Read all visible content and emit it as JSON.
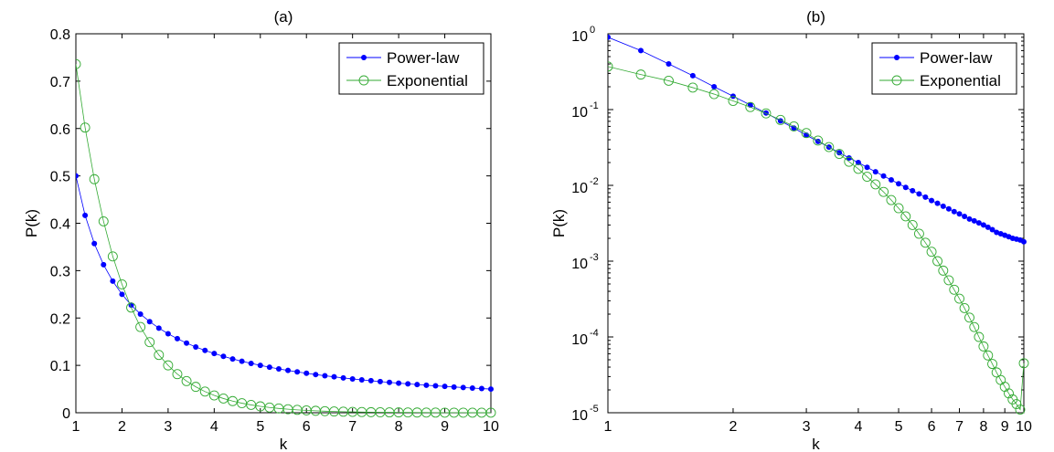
{
  "chart_data": [
    {
      "type": "line",
      "title": "(a)",
      "xlabel": "k",
      "ylabel": "P(k)",
      "xscale": "linear",
      "yscale": "linear",
      "xlim": [
        1,
        10
      ],
      "ylim": [
        0,
        0.8
      ],
      "xticks": [
        "1",
        "2",
        "3",
        "4",
        "5",
        "6",
        "7",
        "8",
        "9",
        "10"
      ],
      "yticks": [
        "0",
        "0.1",
        "0.2",
        "0.3",
        "0.4",
        "0.5",
        "0.6",
        "0.7",
        "0.8"
      ],
      "legend": "top-right",
      "grid": false,
      "series": [
        {
          "name": "Power-law",
          "color": "#0000ff",
          "marker": "dot",
          "x": [
            1.0,
            1.2,
            1.4,
            1.6,
            1.8,
            2.0,
            2.2,
            2.4,
            2.6,
            2.8,
            3.0,
            3.2,
            3.4,
            3.6,
            3.8,
            4.0,
            4.2,
            4.4,
            4.6,
            4.8,
            5.0,
            5.2,
            5.4,
            5.6,
            5.8,
            6.0,
            6.2,
            6.4,
            6.6,
            6.8,
            7.0,
            7.2,
            7.4,
            7.6,
            7.8,
            8.0,
            8.2,
            8.4,
            8.6,
            8.8,
            9.0,
            9.2,
            9.4,
            9.6,
            9.8,
            10.0
          ],
          "y": [
            0.5,
            0.4167,
            0.3571,
            0.3125,
            0.2778,
            0.25,
            0.2273,
            0.2083,
            0.1923,
            0.1786,
            0.1667,
            0.1563,
            0.1471,
            0.1389,
            0.1316,
            0.125,
            0.119,
            0.1136,
            0.1087,
            0.1042,
            0.1,
            0.0962,
            0.0926,
            0.0893,
            0.0862,
            0.0833,
            0.0806,
            0.0781,
            0.0758,
            0.0735,
            0.0714,
            0.0694,
            0.0676,
            0.0658,
            0.0641,
            0.0625,
            0.061,
            0.0595,
            0.0581,
            0.0568,
            0.0556,
            0.0543,
            0.0532,
            0.0521,
            0.051,
            0.05
          ]
        },
        {
          "name": "Exponential",
          "color": "#33aa33",
          "marker": "circle",
          "x": [
            1.0,
            1.2,
            1.4,
            1.6,
            1.8,
            2.0,
            2.2,
            2.4,
            2.6,
            2.8,
            3.0,
            3.2,
            3.4,
            3.6,
            3.8,
            4.0,
            4.2,
            4.4,
            4.6,
            4.8,
            5.0,
            5.2,
            5.4,
            5.6,
            5.8,
            6.0,
            6.2,
            6.4,
            6.6,
            6.8,
            7.0,
            7.2,
            7.4,
            7.6,
            7.8,
            8.0,
            8.2,
            8.4,
            8.6,
            8.8,
            9.0,
            9.2,
            9.4,
            9.6,
            9.8,
            10.0
          ],
          "y": [
            0.736,
            0.602,
            0.493,
            0.404,
            0.33,
            0.271,
            0.222,
            0.181,
            0.149,
            0.122,
            0.1,
            0.0815,
            0.0668,
            0.0547,
            0.0447,
            0.0366,
            0.03,
            0.0246,
            0.0201,
            0.0165,
            0.0135,
            0.011,
            0.009,
            0.0074,
            0.0061,
            0.005,
            0.0041,
            0.0033,
            0.0027,
            0.0022,
            0.0018,
            0.0015,
            0.0012,
            0.001,
            0.0008,
            0.0007,
            0.0006,
            0.0005,
            0.0004,
            0.0003,
            0.0002,
            0.0002,
            0.0002,
            0.0001,
            0.0001,
            0.0001
          ]
        }
      ]
    },
    {
      "type": "line",
      "title": "(b)",
      "xlabel": "k",
      "ylabel": "P(k)",
      "xscale": "log",
      "yscale": "log",
      "xlim": [
        1,
        10
      ],
      "ylim": [
        1e-05,
        1
      ],
      "xticks": [
        "1",
        "2",
        "3",
        "4",
        "5",
        "6",
        "7",
        "8",
        "9",
        "10"
      ],
      "yticks": [
        {
          "base": "10",
          "exp": "0"
        },
        {
          "base": "10",
          "exp": "-1"
        },
        {
          "base": "10",
          "exp": "-2"
        },
        {
          "base": "10",
          "exp": "-3"
        },
        {
          "base": "10",
          "exp": "-4"
        },
        {
          "base": "10",
          "exp": "-5"
        }
      ],
      "legend": "top-right",
      "grid": false,
      "series": [
        {
          "name": "Power-law",
          "color": "#0000ff",
          "marker": "dot",
          "x": [
            1.0,
            1.2,
            1.4,
            1.6,
            1.8,
            2.0,
            2.2,
            2.4,
            2.6,
            2.8,
            3.0,
            3.2,
            3.4,
            3.6,
            3.8,
            4.0,
            4.2,
            4.4,
            4.6,
            4.8,
            5.0,
            5.2,
            5.4,
            5.6,
            5.8,
            6.0,
            6.2,
            6.4,
            6.6,
            6.8,
            7.0,
            7.2,
            7.4,
            7.6,
            7.8,
            8.0,
            8.2,
            8.4,
            8.6,
            8.8,
            9.0,
            9.2,
            9.4,
            9.6,
            9.8,
            10.0
          ],
          "y": [
            0.9,
            0.6,
            0.4,
            0.28,
            0.2,
            0.15,
            0.115,
            0.09,
            0.071,
            0.057,
            0.046,
            0.038,
            0.032,
            0.027,
            0.023,
            0.02,
            0.0173,
            0.0151,
            0.0133,
            0.0118,
            0.0105,
            0.0094,
            0.0085,
            0.0077,
            0.007,
            0.0063,
            0.0058,
            0.0053,
            0.0049,
            0.0045,
            0.0042,
            0.0039,
            0.0036,
            0.0034,
            0.0032,
            0.003,
            0.0028,
            0.0026,
            0.0024,
            0.0023,
            0.0022,
            0.0021,
            0.002,
            0.00195,
            0.0019,
            0.0018
          ]
        },
        {
          "name": "Exponential",
          "color": "#33aa33",
          "marker": "circle",
          "x": [
            1.0,
            1.2,
            1.4,
            1.6,
            1.8,
            2.0,
            2.2,
            2.4,
            2.6,
            2.8,
            3.0,
            3.2,
            3.4,
            3.6,
            3.8,
            4.0,
            4.2,
            4.4,
            4.6,
            4.8,
            5.0,
            5.2,
            5.4,
            5.6,
            5.8,
            6.0,
            6.2,
            6.4,
            6.6,
            6.8,
            7.0,
            7.2,
            7.4,
            7.6,
            7.8,
            8.0,
            8.2,
            8.4,
            8.6,
            8.8,
            9.0,
            9.2,
            9.4,
            9.6,
            9.8,
            10.0
          ],
          "y": [
            0.37,
            0.29,
            0.24,
            0.195,
            0.16,
            0.13,
            0.108,
            0.089,
            0.073,
            0.06,
            0.049,
            0.039,
            0.032,
            0.026,
            0.0205,
            0.0165,
            0.013,
            0.0103,
            0.0082,
            0.0064,
            0.005,
            0.0039,
            0.003,
            0.0023,
            0.00175,
            0.00133,
            0.001,
            0.00075,
            0.00056,
            0.00042,
            0.00032,
            0.00024,
            0.00018,
            0.000135,
            0.0001,
            7.5e-05,
            5.7e-05,
            4.4e-05,
            3.4e-05,
            2.7e-05,
            2.2e-05,
            1.8e-05,
            1.5e-05,
            1.3e-05,
            1.1e-05,
            4.5e-05
          ]
        }
      ]
    }
  ]
}
